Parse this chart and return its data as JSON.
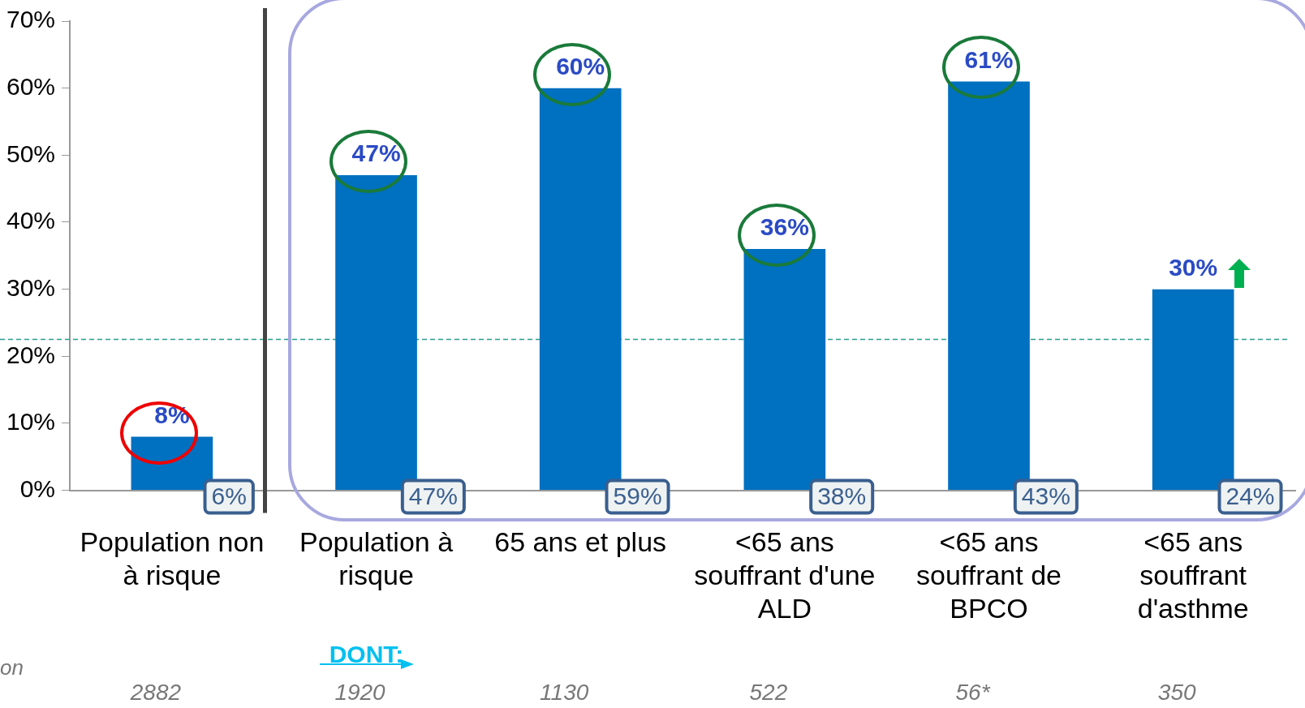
{
  "chart_data": {
    "type": "bar",
    "categories": [
      "Population non à risque",
      "Population à risque",
      "65 ans et plus",
      "<65 ans souffrant d'une ALD",
      "<65 ans souffrant de BPCO",
      "<65 ans souffrant d'asthme"
    ],
    "values": [
      8,
      47,
      60,
      36,
      61,
      30
    ],
    "color": "#0070c0",
    "value_labels": [
      "8%",
      "47%",
      "60%",
      "36%",
      "61%",
      "30%"
    ],
    "ylim": [
      0,
      70
    ],
    "yticks": [
      {
        "value": 0,
        "label": "0%"
      },
      {
        "value": 10,
        "label": "10%"
      },
      {
        "value": 20,
        "label": "20%"
      },
      {
        "value": 30,
        "label": "30%"
      },
      {
        "value": 40,
        "label": "40%"
      },
      {
        "value": 50,
        "label": "50%"
      },
      {
        "value": 60,
        "label": "60%"
      },
      {
        "value": 70,
        "label": "70%"
      }
    ],
    "grid": false,
    "legend": false,
    "ref_lines": [
      {
        "axis": "y",
        "value": 22.5,
        "color": "#2a9d8f",
        "line_style": "dashed"
      }
    ],
    "annotations": [
      "6%",
      "47%",
      "59%",
      "38%",
      "43%",
      "24%",
      "2882",
      "1920",
      "1130",
      "522",
      "56*",
      "350",
      "DONT:",
      "on"
    ]
  }
}
